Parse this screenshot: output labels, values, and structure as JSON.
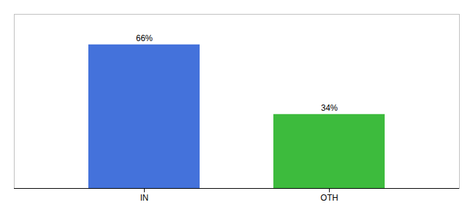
{
  "chart_data": {
    "type": "bar",
    "categories": [
      "IN",
      "OTH"
    ],
    "values": [
      66,
      34
    ],
    "value_labels": [
      "66%",
      "34%"
    ],
    "colors": [
      "#4472db",
      "#3dbb3d"
    ],
    "ylim": [
      0,
      80
    ],
    "data_labels": true,
    "tick_labels": "x",
    "grid": false
  }
}
